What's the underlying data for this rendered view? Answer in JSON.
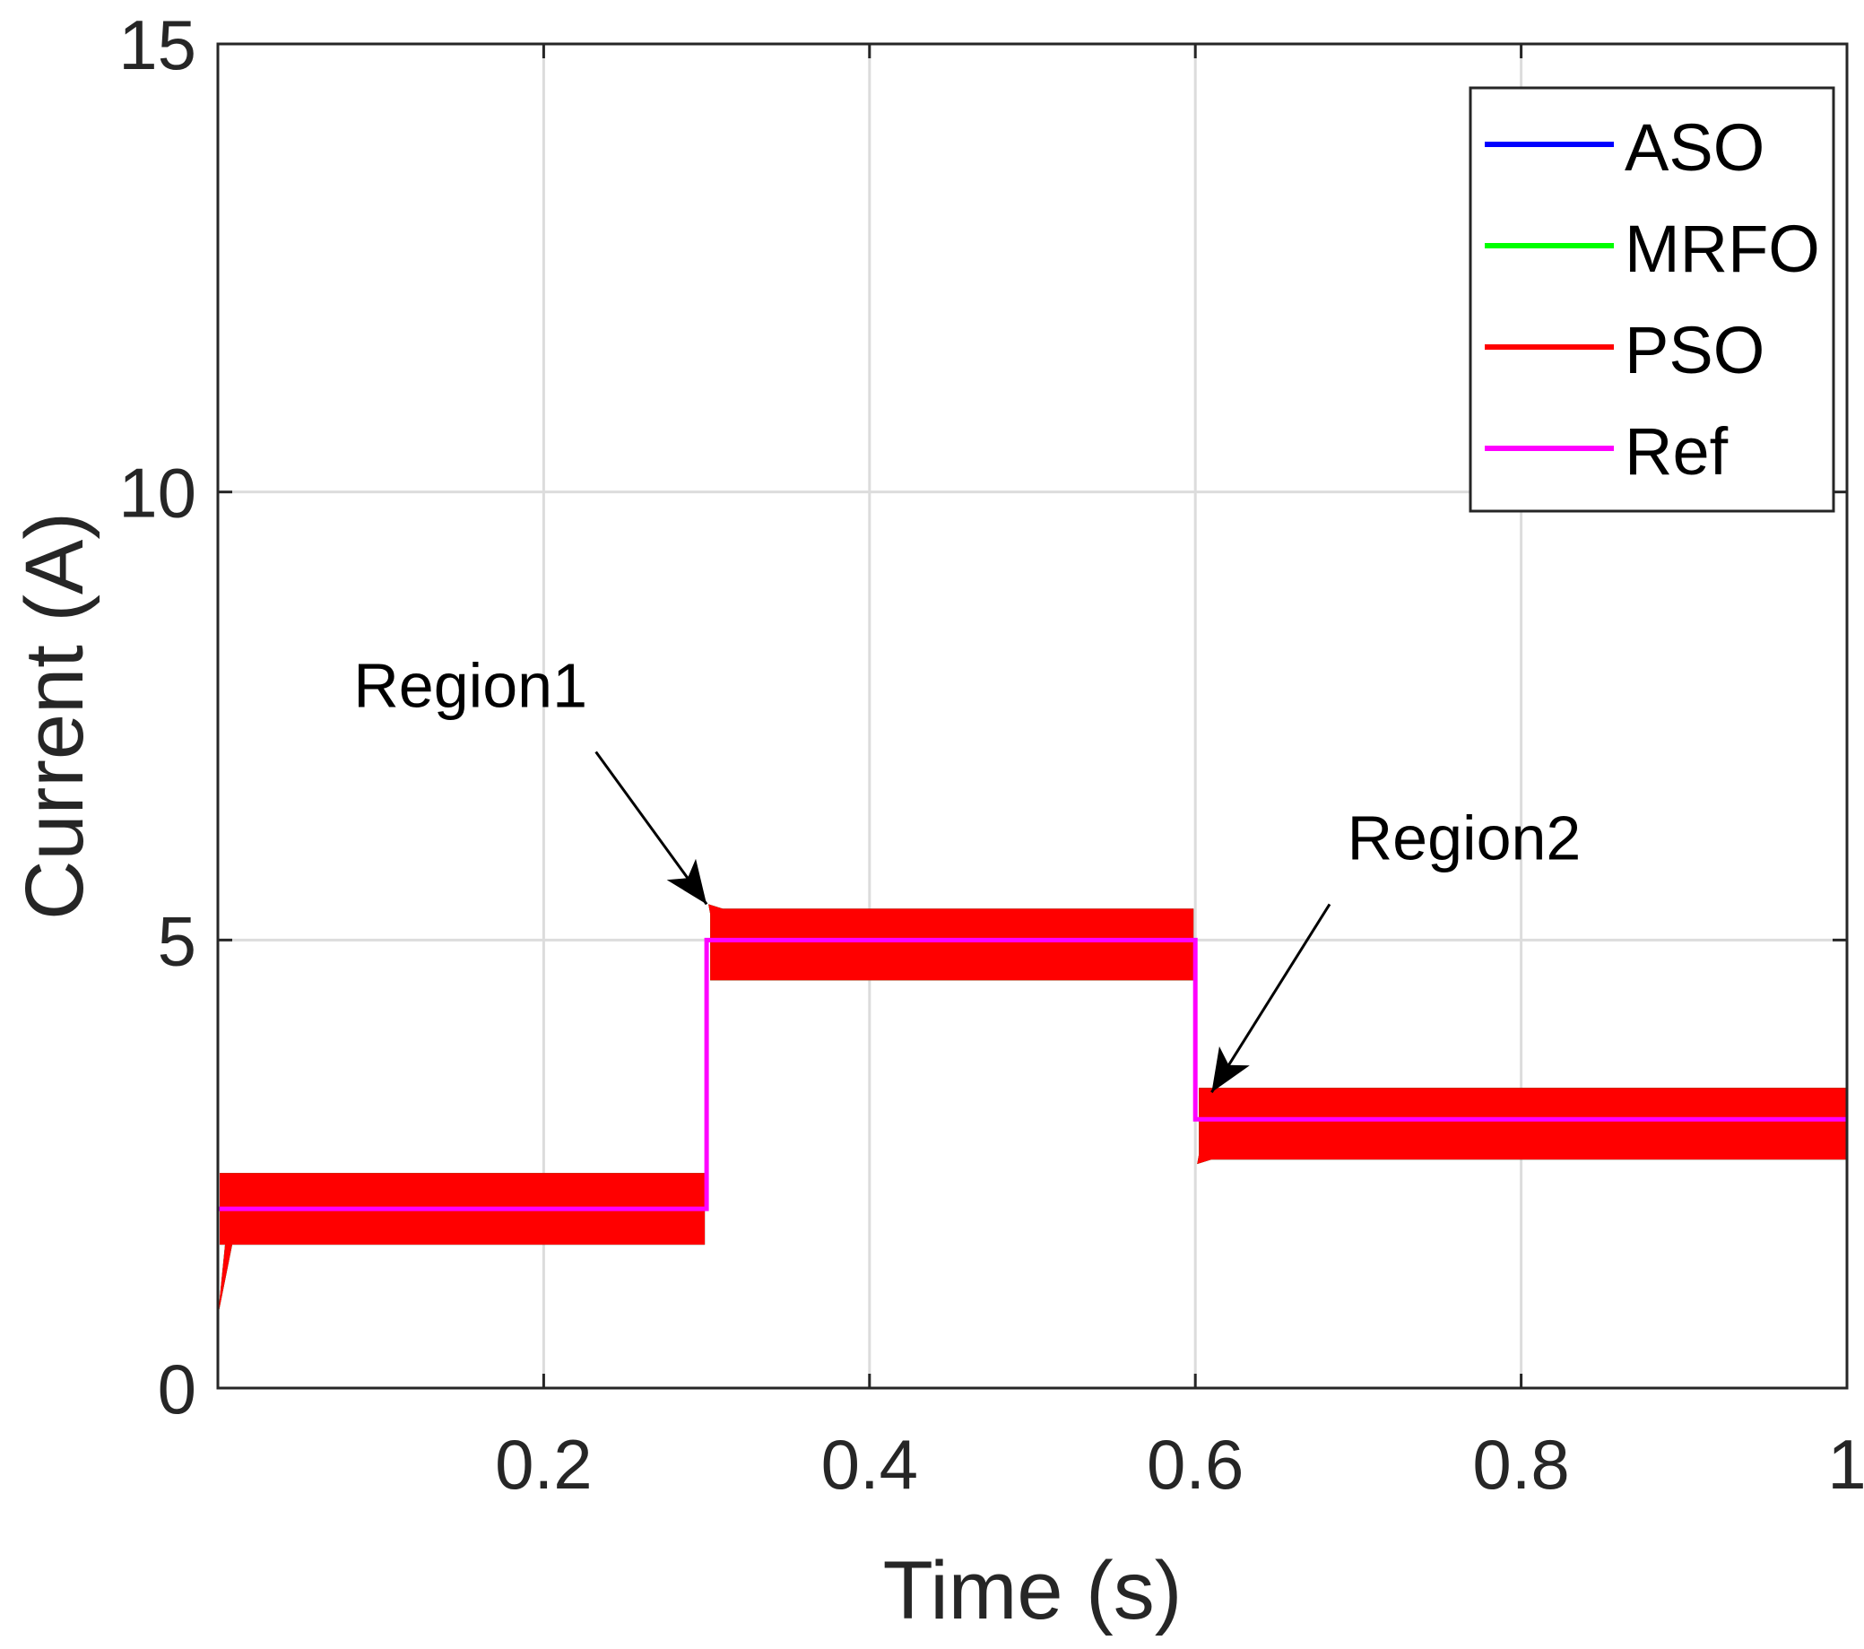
{
  "chart_data": {
    "type": "line",
    "title": "",
    "xlabel": "Time (s)",
    "ylabel": "Current (A)",
    "xlim": [
      0,
      1
    ],
    "ylim": [
      0,
      15
    ],
    "xticks": [
      0.2,
      0.4,
      0.6,
      0.8,
      1
    ],
    "xtick_labels": [
      "0.2",
      "0.4",
      "0.6",
      "0.8",
      "1"
    ],
    "yticks": [
      0,
      5,
      10,
      15
    ],
    "ytick_labels": [
      "0",
      "5",
      "10",
      "15"
    ],
    "grid": true,
    "legend_position": "top-right",
    "series": [
      {
        "name": "ASO",
        "color": "#0000ff",
        "segments": [
          {
            "x0": 0.0,
            "x1": 0.3,
            "center": 2.0,
            "ripple_min": 1.6,
            "ripple_max": 2.4
          },
          {
            "x0": 0.3,
            "x1": 0.6,
            "center": 5.0,
            "ripple_min": 4.55,
            "ripple_max": 5.35
          },
          {
            "x0": 0.6,
            "x1": 1.0,
            "center": 3.0,
            "ripple_min": 2.55,
            "ripple_max": 3.35
          }
        ]
      },
      {
        "name": "MRFO",
        "color": "#00ff00",
        "segments": [
          {
            "x0": 0.0,
            "x1": 0.3,
            "center": 2.0,
            "ripple_min": 1.6,
            "ripple_max": 2.4
          },
          {
            "x0": 0.3,
            "x1": 0.6,
            "center": 5.0,
            "ripple_min": 4.55,
            "ripple_max": 5.35
          },
          {
            "x0": 0.6,
            "x1": 1.0,
            "center": 3.0,
            "ripple_min": 2.55,
            "ripple_max": 3.35
          }
        ]
      },
      {
        "name": "PSO",
        "color": "#ff0000",
        "segments": [
          {
            "x0": 0.0,
            "x1": 0.3,
            "center": 2.0,
            "ripple_min": 1.6,
            "ripple_max": 2.4
          },
          {
            "x0": 0.3,
            "x1": 0.6,
            "center": 5.0,
            "ripple_min": 4.55,
            "ripple_max": 5.35
          },
          {
            "x0": 0.6,
            "x1": 1.0,
            "center": 3.0,
            "ripple_min": 2.55,
            "ripple_max": 3.35
          }
        ]
      },
      {
        "name": "Ref",
        "color": "#ff00ff",
        "x": [
          0.0,
          0.3,
          0.3,
          0.6,
          0.6,
          1.0
        ],
        "y": [
          2.0,
          2.0,
          5.0,
          5.0,
          3.0,
          3.0
        ]
      }
    ],
    "annotations": [
      {
        "text": "Region1",
        "text_at": [
          0.155,
          7.6
        ],
        "arrow_to": [
          0.3,
          5.4
        ]
      },
      {
        "text": "Region2",
        "text_at": [
          0.765,
          5.9
        ],
        "arrow_to": [
          0.61,
          3.3
        ]
      }
    ]
  }
}
